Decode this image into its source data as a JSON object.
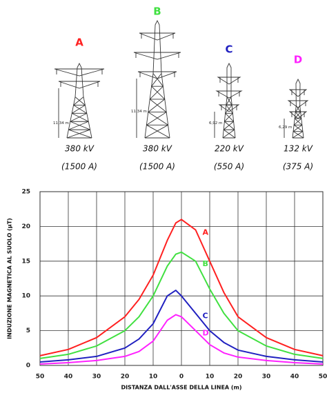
{
  "chart_data": {
    "type": "line",
    "xlabel": "DISTANZA DALL'ASSE DELLA LINEA (m)",
    "ylabel": "INDUZIONE MAGNETICA AL SUOLO (µT)",
    "x": [
      -50,
      -40,
      -30,
      -20,
      -15,
      -10,
      -5,
      -2,
      0,
      5,
      10,
      15,
      20,
      30,
      40,
      50
    ],
    "series": [
      {
        "name": "A",
        "color": "#ff2020",
        "values": [
          1.4,
          2.3,
          4,
          7,
          9.5,
          13,
          18,
          20.5,
          21,
          19.5,
          15,
          10.5,
          7,
          4,
          2.3,
          1.4
        ]
      },
      {
        "name": "B",
        "color": "#40e040",
        "values": [
          1.0,
          1.6,
          2.8,
          5,
          7,
          10,
          14.3,
          16,
          16.3,
          15,
          11,
          7.5,
          5,
          2.8,
          1.6,
          1.0
        ]
      },
      {
        "name": "C",
        "color": "#2020c0",
        "values": [
          0.5,
          0.8,
          1.3,
          2.5,
          3.8,
          6,
          10,
          10.8,
          10,
          7.5,
          5,
          3.3,
          2.2,
          1.3,
          0.8,
          0.5
        ]
      },
      {
        "name": "D",
        "color": "#ff20ff",
        "values": [
          0.2,
          0.4,
          0.7,
          1.3,
          2,
          3.5,
          6.5,
          7.3,
          7,
          5,
          3,
          1.8,
          1.2,
          0.7,
          0.4,
          0.2
        ]
      }
    ],
    "xlim": [
      -50,
      50
    ],
    "xticks": [
      {
        "value": -50,
        "label": "50"
      },
      {
        "value": -40,
        "label": "40"
      },
      {
        "value": -30,
        "label": "30"
      },
      {
        "value": -20,
        "label": "20"
      },
      {
        "value": -10,
        "label": "10"
      },
      0,
      10,
      20,
      30,
      40,
      50
    ],
    "ylim": [
      0,
      25
    ],
    "yticks": [
      0,
      5,
      10,
      15,
      20,
      25
    ],
    "grid": true
  },
  "towers": [
    {
      "voltage": "380 kV",
      "current": "(1500 A)",
      "height": "11,34 m"
    },
    {
      "voltage": "380 kV",
      "current": "(1500 A)",
      "height": "11,34 m"
    },
    {
      "voltage": "220 kV",
      "current": "(550 A)",
      "height": "6,92 m"
    },
    {
      "voltage": "132 kV",
      "current": "(375 A)",
      "height": "6,29 m"
    }
  ]
}
